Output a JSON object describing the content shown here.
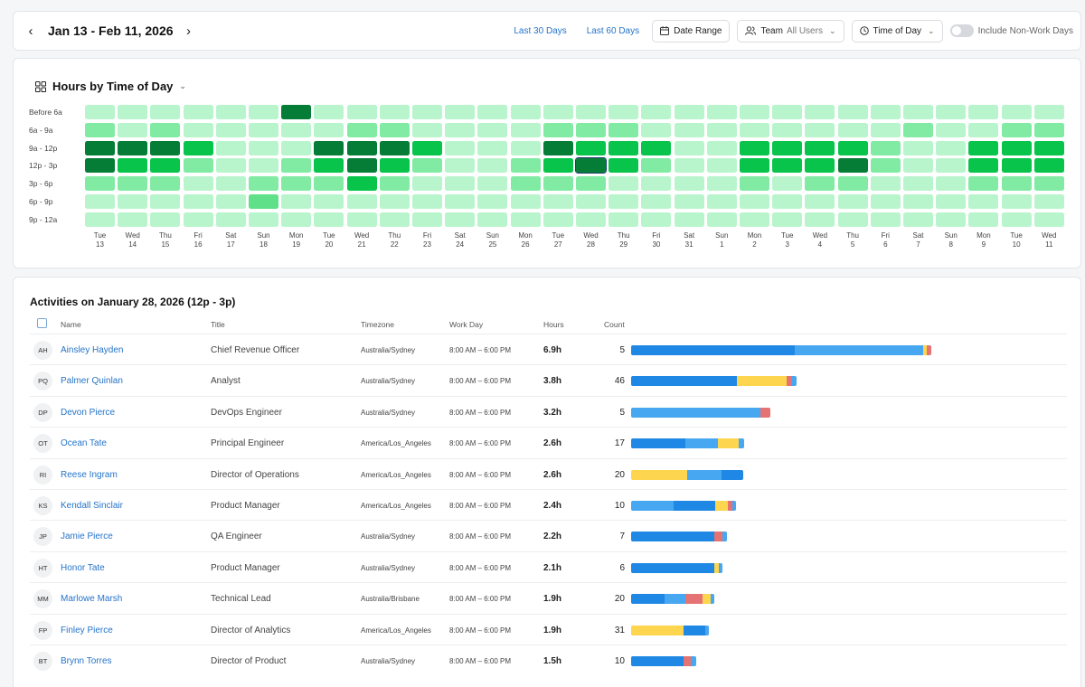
{
  "topbar": {
    "date_range": "Jan 13 - Feb 11, 2026",
    "last30": "Last 30 Days",
    "last60": "Last 60 Days",
    "date_range_btn": "Date Range",
    "team_label": "Team",
    "team_value": "All Users",
    "time_of_day": "Time of Day",
    "include_nonwork": "Include Non-Work Days"
  },
  "heatmap": {
    "title": "Hours by Time of Day",
    "rows": [
      "Before 6a",
      "6a - 9a",
      "9a - 12p",
      "12p - 3p",
      "3p - 6p",
      "6p - 9p",
      "9p - 12a"
    ],
    "days": [
      {
        "d": "Tue",
        "n": "13"
      },
      {
        "d": "Wed",
        "n": "14"
      },
      {
        "d": "Thu",
        "n": "15"
      },
      {
        "d": "Fri",
        "n": "16"
      },
      {
        "d": "Sat",
        "n": "17"
      },
      {
        "d": "Sun",
        "n": "18"
      },
      {
        "d": "Mon",
        "n": "19"
      },
      {
        "d": "Tue",
        "n": "20"
      },
      {
        "d": "Wed",
        "n": "21"
      },
      {
        "d": "Thu",
        "n": "22"
      },
      {
        "d": "Fri",
        "n": "23"
      },
      {
        "d": "Sat",
        "n": "24"
      },
      {
        "d": "Sun",
        "n": "25"
      },
      {
        "d": "Mon",
        "n": "26"
      },
      {
        "d": "Tue",
        "n": "27"
      },
      {
        "d": "Wed",
        "n": "28"
      },
      {
        "d": "Thu",
        "n": "29"
      },
      {
        "d": "Fri",
        "n": "30"
      },
      {
        "d": "Sat",
        "n": "31"
      },
      {
        "d": "Sun",
        "n": "1"
      },
      {
        "d": "Mon",
        "n": "2"
      },
      {
        "d": "Tue",
        "n": "3"
      },
      {
        "d": "Wed",
        "n": "4"
      },
      {
        "d": "Thu",
        "n": "5"
      },
      {
        "d": "Fri",
        "n": "6"
      },
      {
        "d": "Sat",
        "n": "7"
      },
      {
        "d": "Sun",
        "n": "8"
      },
      {
        "d": "Mon",
        "n": "9"
      },
      {
        "d": "Tue",
        "n": "10"
      },
      {
        "d": "Wed",
        "n": "11"
      }
    ],
    "levels": [
      [
        0,
        0,
        0,
        0,
        0,
        0,
        4,
        0,
        0,
        0,
        0,
        0,
        0,
        0,
        0,
        0,
        0,
        0,
        0,
        0,
        0,
        0,
        0,
        0,
        0,
        0,
        0,
        0,
        0,
        0
      ],
      [
        1,
        0,
        1,
        0,
        0,
        0,
        0,
        0,
        1,
        1,
        0,
        0,
        0,
        0,
        1,
        1,
        1,
        0,
        0,
        0,
        0,
        0,
        0,
        0,
        0,
        1,
        0,
        0,
        1,
        1
      ],
      [
        4,
        4,
        4,
        3,
        0,
        0,
        0,
        4,
        4,
        4,
        3,
        0,
        0,
        0,
        4,
        3,
        3,
        3,
        0,
        0,
        3,
        3,
        3,
        3,
        1,
        0,
        0,
        3,
        3,
        3
      ],
      [
        4,
        3,
        3,
        1,
        0,
        0,
        1,
        3,
        4,
        3,
        1,
        0,
        0,
        1,
        3,
        4,
        3,
        1,
        0,
        0,
        3,
        3,
        3,
        4,
        1,
        0,
        0,
        3,
        3,
        3
      ],
      [
        1,
        1,
        1,
        0,
        0,
        1,
        1,
        1,
        3,
        1,
        0,
        0,
        0,
        1,
        1,
        1,
        0,
        0,
        0,
        0,
        1,
        0,
        1,
        1,
        0,
        0,
        0,
        1,
        1,
        1
      ],
      [
        0,
        0,
        0,
        0,
        0,
        2,
        0,
        0,
        0,
        0,
        0,
        0,
        0,
        0,
        0,
        0,
        0,
        0,
        0,
        0,
        0,
        0,
        0,
        0,
        0,
        0,
        0,
        0,
        0,
        0
      ],
      [
        0,
        0,
        0,
        0,
        0,
        0,
        0,
        0,
        0,
        0,
        0,
        0,
        0,
        0,
        0,
        0,
        0,
        0,
        0,
        0,
        0,
        0,
        0,
        0,
        0,
        0,
        0,
        0,
        0,
        0
      ]
    ],
    "selected": {
      "row": 3,
      "col": 15
    },
    "palette": [
      "#b9f5cc",
      "#82eba3",
      "#5fe089",
      "#08c44b",
      "#067d36"
    ]
  },
  "activities": {
    "title": "Activities on January 28, 2026 (12p - 3p)",
    "headers": {
      "name": "Name",
      "title": "Title",
      "timezone": "Timezone",
      "workday": "Work Day",
      "hours": "Hours",
      "count": "Count"
    },
    "colors": {
      "blue": "#1f88e5",
      "lightblue": "#47a7f0",
      "yellow": "#fdd54e",
      "red": "#e57373"
    },
    "rows": [
      {
        "initials": "AH",
        "name": "Ainsley Hayden",
        "title": "Chief Revenue Officer",
        "tz": "Australia/Sydney",
        "workday": "8:00 AM – 6:00 PM",
        "hours": "6.9h",
        "count": "5",
        "segs": [
          [
            "blue",
            181
          ],
          [
            "lightblue",
            142
          ],
          [
            "yellow",
            4
          ],
          [
            "red",
            5
          ]
        ]
      },
      {
        "initials": "PQ",
        "name": "Palmer Quinlan",
        "title": "Analyst",
        "tz": "Australia/Sydney",
        "workday": "8:00 AM – 6:00 PM",
        "hours": "3.8h",
        "count": "46",
        "segs": [
          [
            "blue",
            117
          ],
          [
            "yellow",
            55
          ],
          [
            "red",
            6
          ],
          [
            "lightblue",
            5
          ]
        ]
      },
      {
        "initials": "DP",
        "name": "Devon Pierce",
        "title": "DevOps Engineer",
        "tz": "Australia/Sydney",
        "workday": "8:00 AM – 6:00 PM",
        "hours": "3.2h",
        "count": "5",
        "segs": [
          [
            "lightblue",
            143
          ],
          [
            "red",
            11
          ]
        ]
      },
      {
        "initials": "OT",
        "name": "Ocean Tate",
        "title": "Principal Engineer",
        "tz": "America/Los_Angeles",
        "workday": "8:00 AM – 6:00 PM",
        "hours": "2.6h",
        "count": "17",
        "segs": [
          [
            "blue",
            60
          ],
          [
            "lightblue",
            36
          ],
          [
            "yellow",
            23
          ],
          [
            "lightblue",
            6
          ]
        ]
      },
      {
        "initials": "RI",
        "name": "Reese Ingram",
        "title": "Director of Operations",
        "tz": "America/Los_Angeles",
        "workday": "8:00 AM – 6:00 PM",
        "hours": "2.6h",
        "count": "20",
        "segs": [
          [
            "yellow",
            62
          ],
          [
            "lightblue",
            38
          ],
          [
            "blue",
            24
          ]
        ]
      },
      {
        "initials": "KS",
        "name": "Kendall Sinclair",
        "title": "Product Manager",
        "tz": "America/Los_Angeles",
        "workday": "8:00 AM – 6:00 PM",
        "hours": "2.4h",
        "count": "10",
        "segs": [
          [
            "lightblue",
            47
          ],
          [
            "blue",
            46
          ],
          [
            "yellow",
            14
          ],
          [
            "red",
            5
          ],
          [
            "lightblue",
            4
          ]
        ]
      },
      {
        "initials": "JP",
        "name": "Jamie Pierce",
        "title": "QA Engineer",
        "tz": "Australia/Sydney",
        "workday": "8:00 AM – 6:00 PM",
        "hours": "2.2h",
        "count": "7",
        "segs": [
          [
            "blue",
            92
          ],
          [
            "red",
            9
          ],
          [
            "lightblue",
            5
          ]
        ]
      },
      {
        "initials": "HT",
        "name": "Honor Tate",
        "title": "Product Manager",
        "tz": "Australia/Sydney",
        "workday": "8:00 AM – 6:00 PM",
        "hours": "2.1h",
        "count": "6",
        "segs": [
          [
            "blue",
            92
          ],
          [
            "yellow",
            5
          ],
          [
            "lightblue",
            4
          ]
        ]
      },
      {
        "initials": "MM",
        "name": "Marlowe Marsh",
        "title": "Technical Lead",
        "tz": "Australia/Brisbane",
        "workday": "8:00 AM – 6:00 PM",
        "hours": "1.9h",
        "count": "20",
        "segs": [
          [
            "blue",
            37
          ],
          [
            "lightblue",
            23
          ],
          [
            "red",
            19
          ],
          [
            "yellow",
            9
          ],
          [
            "lightblue",
            4
          ]
        ]
      },
      {
        "initials": "FP",
        "name": "Finley Pierce",
        "title": "Director of Analytics",
        "tz": "America/Los_Angeles",
        "workday": "8:00 AM – 6:00 PM",
        "hours": "1.9h",
        "count": "31",
        "segs": [
          [
            "yellow",
            58
          ],
          [
            "blue",
            24
          ],
          [
            "lightblue",
            4
          ]
        ]
      },
      {
        "initials": "BT",
        "name": "Brynn Torres",
        "title": "Director of Product",
        "tz": "Australia/Sydney",
        "workday": "8:00 AM – 6:00 PM",
        "hours": "1.5h",
        "count": "10",
        "segs": [
          [
            "blue",
            58
          ],
          [
            "red",
            8
          ],
          [
            "lightblue",
            6
          ]
        ]
      }
    ]
  }
}
